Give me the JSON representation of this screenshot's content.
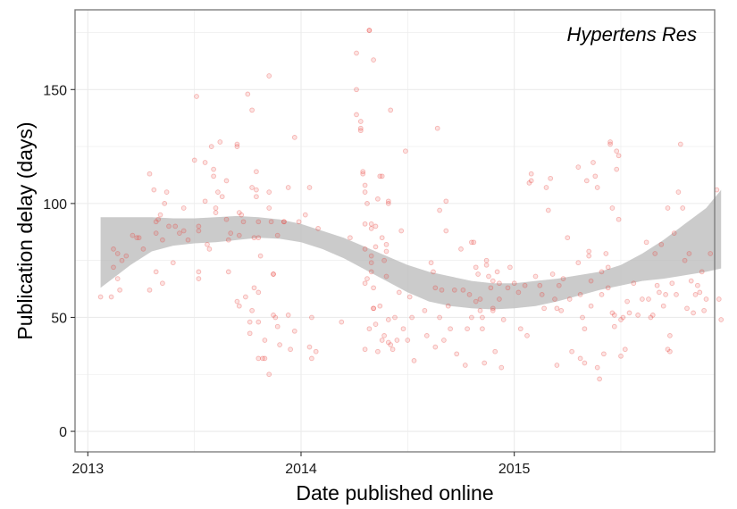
{
  "chart_data": {
    "type": "scatter",
    "title": "",
    "annotation": "Hypertens Res",
    "xlabel": "Date published online",
    "ylabel": "Publication delay (days)",
    "xlim": [
      2012.94,
      2015.94
    ],
    "ylim": [
      -9,
      185
    ],
    "x_ticks": [
      2013,
      2014,
      2015
    ],
    "x_tick_labels": [
      "2013",
      "2014",
      "2015"
    ],
    "y_ticks": [
      0,
      50,
      100,
      150
    ],
    "y_tick_labels": [
      "0",
      "50",
      "100",
      "150"
    ],
    "grid": true,
    "legend": "none",
    "colors": {
      "points": "#e8413c",
      "band": "#bdbdbd",
      "panel_border": "#7f7f7f",
      "grid": "#ebebeb"
    },
    "points": [
      [
        2013.06,
        59
      ],
      [
        2013.11,
        59
      ],
      [
        2013.12,
        80
      ],
      [
        2013.12,
        72
      ],
      [
        2013.14,
        78
      ],
      [
        2013.14,
        67
      ],
      [
        2013.15,
        62
      ],
      [
        2013.16,
        75
      ],
      [
        2013.18,
        77
      ],
      [
        2013.21,
        86
      ],
      [
        2013.23,
        85
      ],
      [
        2013.24,
        85
      ],
      [
        2013.26,
        80
      ],
      [
        2013.29,
        62
      ],
      [
        2013.29,
        113
      ],
      [
        2013.31,
        106
      ],
      [
        2013.32,
        92
      ],
      [
        2013.32,
        87
      ],
      [
        2013.32,
        70
      ],
      [
        2013.33,
        93
      ],
      [
        2013.34,
        95
      ],
      [
        2013.35,
        84
      ],
      [
        2013.35,
        65
      ],
      [
        2013.36,
        100
      ],
      [
        2013.37,
        105
      ],
      [
        2013.38,
        90
      ],
      [
        2013.4,
        74
      ],
      [
        2013.41,
        90
      ],
      [
        2013.43,
        87
      ],
      [
        2013.45,
        88
      ],
      [
        2013.45,
        98
      ],
      [
        2013.47,
        84
      ],
      [
        2013.5,
        119
      ],
      [
        2013.51,
        147
      ],
      [
        2013.52,
        88
      ],
      [
        2013.52,
        90
      ],
      [
        2013.52,
        70
      ],
      [
        2013.52,
        67
      ],
      [
        2013.55,
        118
      ],
      [
        2013.55,
        101
      ],
      [
        2013.56,
        82
      ],
      [
        2013.57,
        80
      ],
      [
        2013.58,
        125
      ],
      [
        2013.59,
        115
      ],
      [
        2013.59,
        112
      ],
      [
        2013.6,
        98
      ],
      [
        2013.6,
        96
      ],
      [
        2013.61,
        105
      ],
      [
        2013.62,
        127
      ],
      [
        2013.63,
        103
      ],
      [
        2013.65,
        110
      ],
      [
        2013.65,
        93
      ],
      [
        2013.66,
        84
      ],
      [
        2013.66,
        70
      ],
      [
        2013.67,
        87
      ],
      [
        2013.7,
        126
      ],
      [
        2013.7,
        125
      ],
      [
        2013.7,
        57
      ],
      [
        2013.71,
        96
      ],
      [
        2013.71,
        86
      ],
      [
        2013.71,
        55
      ],
      [
        2013.72,
        95
      ],
      [
        2013.73,
        92
      ],
      [
        2013.74,
        59
      ],
      [
        2013.75,
        148
      ],
      [
        2013.76,
        48
      ],
      [
        2013.76,
        43
      ],
      [
        2013.77,
        141
      ],
      [
        2013.77,
        107
      ],
      [
        2013.77,
        53
      ],
      [
        2013.78,
        85
      ],
      [
        2013.78,
        63
      ],
      [
        2013.79,
        114
      ],
      [
        2013.79,
        106
      ],
      [
        2013.79,
        103
      ],
      [
        2013.8,
        92
      ],
      [
        2013.8,
        85
      ],
      [
        2013.8,
        61
      ],
      [
        2013.8,
        48
      ],
      [
        2013.8,
        32
      ],
      [
        2013.81,
        77
      ],
      [
        2013.82,
        32
      ],
      [
        2013.83,
        40
      ],
      [
        2013.83,
        32
      ],
      [
        2013.85,
        156
      ],
      [
        2013.85,
        105
      ],
      [
        2013.85,
        98
      ],
      [
        2013.85,
        25
      ],
      [
        2013.86,
        92
      ],
      [
        2013.87,
        69
      ],
      [
        2013.87,
        69
      ],
      [
        2013.87,
        51
      ],
      [
        2013.88,
        50
      ],
      [
        2013.89,
        86
      ],
      [
        2013.89,
        46
      ],
      [
        2013.9,
        38
      ],
      [
        2013.92,
        92
      ],
      [
        2013.92,
        92
      ],
      [
        2013.94,
        107
      ],
      [
        2013.94,
        51
      ],
      [
        2013.95,
        36
      ],
      [
        2013.97,
        129
      ],
      [
        2013.97,
        44
      ],
      [
        2013.99,
        92
      ],
      [
        2014.02,
        95
      ],
      [
        2014.04,
        107
      ],
      [
        2014.04,
        37
      ],
      [
        2014.05,
        50
      ],
      [
        2014.05,
        32
      ],
      [
        2014.07,
        35
      ],
      [
        2014.08,
        89
      ],
      [
        2014.19,
        48
      ],
      [
        2014.23,
        85
      ],
      [
        2014.26,
        166
      ],
      [
        2014.26,
        150
      ],
      [
        2014.26,
        139
      ],
      [
        2014.28,
        136
      ],
      [
        2014.28,
        133
      ],
      [
        2014.28,
        132
      ],
      [
        2014.29,
        114
      ],
      [
        2014.29,
        113
      ],
      [
        2014.3,
        108
      ],
      [
        2014.3,
        105
      ],
      [
        2014.3,
        91
      ],
      [
        2014.3,
        80
      ],
      [
        2014.3,
        65
      ],
      [
        2014.31,
        100
      ],
      [
        2014.31,
        67
      ],
      [
        2014.32,
        176
      ],
      [
        2014.32,
        176
      ],
      [
        2014.33,
        91
      ],
      [
        2014.33,
        89
      ],
      [
        2014.33,
        77
      ],
      [
        2014.33,
        74
      ],
      [
        2014.33,
        70
      ],
      [
        2014.34,
        163
      ],
      [
        2014.34,
        54
      ],
      [
        2014.34,
        54
      ],
      [
        2014.35,
        81
      ],
      [
        2014.35,
        90
      ],
      [
        2014.36,
        102
      ],
      [
        2014.37,
        112
      ],
      [
        2014.38,
        112
      ],
      [
        2014.38,
        85
      ],
      [
        2014.39,
        75
      ],
      [
        2014.4,
        82
      ],
      [
        2014.4,
        79
      ],
      [
        2014.41,
        101
      ],
      [
        2014.41,
        100
      ],
      [
        2014.42,
        141
      ],
      [
        2014.3,
        36
      ],
      [
        2014.32,
        45
      ],
      [
        2014.34,
        63
      ],
      [
        2014.35,
        47
      ],
      [
        2014.36,
        35
      ],
      [
        2014.37,
        55
      ],
      [
        2014.38,
        40
      ],
      [
        2014.39,
        42
      ],
      [
        2014.4,
        68
      ],
      [
        2014.41,
        49
      ],
      [
        2014.41,
        39
      ],
      [
        2014.42,
        38
      ],
      [
        2014.43,
        36
      ],
      [
        2014.44,
        50
      ],
      [
        2014.45,
        40
      ],
      [
        2014.46,
        61
      ],
      [
        2014.47,
        88
      ],
      [
        2014.48,
        45
      ],
      [
        2014.49,
        123
      ],
      [
        2014.5,
        40
      ],
      [
        2014.51,
        59
      ],
      [
        2014.52,
        50
      ],
      [
        2014.53,
        31
      ],
      [
        2014.58,
        53
      ],
      [
        2014.59,
        42
      ],
      [
        2014.61,
        74
      ],
      [
        2014.62,
        70
      ],
      [
        2014.63,
        63
      ],
      [
        2014.63,
        37
      ],
      [
        2014.64,
        133
      ],
      [
        2014.65,
        97
      ],
      [
        2014.65,
        50
      ],
      [
        2014.66,
        62
      ],
      [
        2014.67,
        40
      ],
      [
        2014.68,
        88
      ],
      [
        2014.68,
        101
      ],
      [
        2014.69,
        55
      ],
      [
        2014.7,
        45
      ],
      [
        2014.72,
        62
      ],
      [
        2014.73,
        34
      ],
      [
        2014.76,
        62
      ],
      [
        2014.77,
        29
      ],
      [
        2014.79,
        60
      ],
      [
        2014.8,
        83
      ],
      [
        2014.81,
        83
      ],
      [
        2014.82,
        72
      ],
      [
        2014.82,
        57
      ],
      [
        2014.84,
        53
      ],
      [
        2014.84,
        58
      ],
      [
        2014.85,
        50
      ],
      [
        2014.86,
        30
      ],
      [
        2014.87,
        75
      ],
      [
        2014.88,
        68
      ],
      [
        2014.89,
        63
      ],
      [
        2014.9,
        54
      ],
      [
        2014.9,
        53
      ],
      [
        2014.91,
        35
      ],
      [
        2014.92,
        70
      ],
      [
        2014.93,
        65
      ],
      [
        2014.94,
        28
      ],
      [
        2014.75,
        80
      ],
      [
        2014.78,
        45
      ],
      [
        2014.8,
        50
      ],
      [
        2014.83,
        69
      ],
      [
        2014.85,
        45
      ],
      [
        2014.87,
        73
      ],
      [
        2014.9,
        66
      ],
      [
        2014.93,
        58
      ],
      [
        2014.95,
        49
      ],
      [
        2014.97,
        63
      ],
      [
        2014.98,
        72
      ],
      [
        2015.0,
        65
      ],
      [
        2015.02,
        61
      ],
      [
        2015.03,
        45
      ],
      [
        2015.05,
        64
      ],
      [
        2015.06,
        42
      ],
      [
        2015.07,
        109
      ],
      [
        2015.08,
        110
      ],
      [
        2015.08,
        113
      ],
      [
        2015.1,
        68
      ],
      [
        2015.12,
        64
      ],
      [
        2015.13,
        60
      ],
      [
        2015.14,
        54
      ],
      [
        2015.15,
        107
      ],
      [
        2015.16,
        97
      ],
      [
        2015.17,
        111
      ],
      [
        2015.18,
        69
      ],
      [
        2015.19,
        58
      ],
      [
        2015.2,
        54
      ],
      [
        2015.2,
        29
      ],
      [
        2015.21,
        64
      ],
      [
        2015.22,
        53
      ],
      [
        2015.23,
        67
      ],
      [
        2015.25,
        85
      ],
      [
        2015.26,
        58
      ],
      [
        2015.27,
        35
      ],
      [
        2015.3,
        116
      ],
      [
        2015.3,
        74
      ],
      [
        2015.31,
        32
      ],
      [
        2015.31,
        60
      ],
      [
        2015.32,
        50
      ],
      [
        2015.33,
        45
      ],
      [
        2015.33,
        30
      ],
      [
        2015.34,
        110
      ],
      [
        2015.35,
        79
      ],
      [
        2015.35,
        77
      ],
      [
        2015.36,
        66
      ],
      [
        2015.36,
        55
      ],
      [
        2015.37,
        118
      ],
      [
        2015.38,
        112
      ],
      [
        2015.39,
        107
      ],
      [
        2015.39,
        28
      ],
      [
        2015.4,
        23
      ],
      [
        2015.41,
        70
      ],
      [
        2015.41,
        60
      ],
      [
        2015.42,
        34
      ],
      [
        2015.43,
        78
      ],
      [
        2015.44,
        72
      ],
      [
        2015.44,
        63
      ],
      [
        2015.45,
        127
      ],
      [
        2015.45,
        126
      ],
      [
        2015.46,
        98
      ],
      [
        2015.46,
        52
      ],
      [
        2015.47,
        51
      ],
      [
        2015.47,
        46
      ],
      [
        2015.48,
        123
      ],
      [
        2015.48,
        115
      ],
      [
        2015.49,
        121
      ],
      [
        2015.49,
        93
      ],
      [
        2015.5,
        49
      ],
      [
        2015.5,
        33
      ],
      [
        2015.51,
        50
      ],
      [
        2015.52,
        36
      ],
      [
        2015.53,
        57
      ],
      [
        2015.54,
        52
      ],
      [
        2015.56,
        65
      ],
      [
        2015.58,
        51
      ],
      [
        2015.6,
        58
      ],
      [
        2015.62,
        83
      ],
      [
        2015.63,
        58
      ],
      [
        2015.64,
        50
      ],
      [
        2015.65,
        51
      ],
      [
        2015.66,
        78
      ],
      [
        2015.67,
        64
      ],
      [
        2015.68,
        61
      ],
      [
        2015.69,
        82
      ],
      [
        2015.7,
        55
      ],
      [
        2015.71,
        60
      ],
      [
        2015.72,
        98
      ],
      [
        2015.72,
        36
      ],
      [
        2015.73,
        42
      ],
      [
        2015.73,
        35
      ],
      [
        2015.74,
        65
      ],
      [
        2015.75,
        87
      ],
      [
        2015.76,
        60
      ],
      [
        2015.77,
        105
      ],
      [
        2015.78,
        126
      ],
      [
        2015.79,
        98
      ],
      [
        2015.8,
        75
      ],
      [
        2015.81,
        54
      ],
      [
        2015.82,
        78
      ],
      [
        2015.83,
        66
      ],
      [
        2015.84,
        52
      ],
      [
        2015.85,
        60
      ],
      [
        2015.86,
        64
      ],
      [
        2015.87,
        61
      ],
      [
        2015.88,
        70
      ],
      [
        2015.89,
        53
      ],
      [
        2015.9,
        58
      ],
      [
        2015.92,
        78
      ],
      [
        2015.95,
        106
      ],
      [
        2015.96,
        58
      ],
      [
        2015.97,
        49
      ]
    ],
    "smooth_band": [
      [
        2013.06,
        63,
        94
      ],
      [
        2013.2,
        73,
        94
      ],
      [
        2013.3,
        79,
        94
      ],
      [
        2013.4,
        81.5,
        93.5
      ],
      [
        2013.5,
        82.5,
        93.5
      ],
      [
        2013.6,
        83,
        94
      ],
      [
        2013.7,
        84,
        94.5
      ],
      [
        2013.8,
        85,
        94
      ],
      [
        2013.9,
        84.5,
        93
      ],
      [
        2014.0,
        83,
        91
      ],
      [
        2014.1,
        80,
        88
      ],
      [
        2014.2,
        76,
        85
      ],
      [
        2014.3,
        71,
        81
      ],
      [
        2014.4,
        66,
        77
      ],
      [
        2014.5,
        61,
        73
      ],
      [
        2014.6,
        57,
        70
      ],
      [
        2014.7,
        55,
        68
      ],
      [
        2014.8,
        54,
        66
      ],
      [
        2014.9,
        53.5,
        65
      ],
      [
        2015.0,
        54,
        65
      ],
      [
        2015.1,
        55,
        66
      ],
      [
        2015.2,
        57,
        67
      ],
      [
        2015.3,
        59.5,
        68.5
      ],
      [
        2015.4,
        62,
        70
      ],
      [
        2015.5,
        64,
        73
      ],
      [
        2015.6,
        66,
        78
      ],
      [
        2015.7,
        67,
        84
      ],
      [
        2015.8,
        68.5,
        91
      ],
      [
        2015.9,
        70,
        98
      ],
      [
        2015.97,
        71.5,
        106
      ]
    ]
  }
}
